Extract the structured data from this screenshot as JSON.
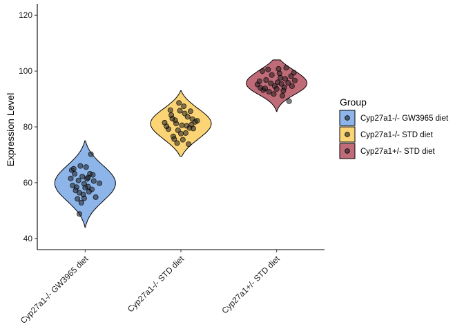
{
  "chart_data": {
    "type": "violin",
    "title": "",
    "xlabel": "",
    "ylabel": "Expression Level",
    "ylim": [
      36,
      124
    ],
    "yticks": [
      40,
      60,
      80,
      100,
      120
    ],
    "grid": false,
    "legend": {
      "title": "Group",
      "placement": "right"
    },
    "categories": [
      "Cyp27a1-/- GW3965 diet",
      "Cyp27a1-/- STD diet",
      "Cyp27a1+/- STD diet"
    ],
    "colors": [
      "#8db5ea",
      "#fbd476",
      "#c06c78"
    ],
    "series": [
      {
        "name": "Cyp27a1-/- GW3965 diet",
        "range": [
          44,
          75
        ],
        "points": [
          [
            -0.28,
            64.5
          ],
          [
            -0.22,
            63.2
          ],
          [
            -0.3,
            61.5
          ],
          [
            -0.18,
            58.4
          ],
          [
            -0.24,
            65.0
          ],
          [
            -0.1,
            66.0
          ],
          [
            -0.14,
            60.8
          ],
          [
            -0.06,
            62.2
          ],
          [
            -0.2,
            57.2
          ],
          [
            -0.12,
            56.4
          ],
          [
            -0.02,
            59.6
          ],
          [
            0.04,
            61.4
          ],
          [
            0.06,
            58.6
          ],
          [
            -0.04,
            55.8
          ],
          [
            0.1,
            63.2
          ],
          [
            0.14,
            57.6
          ],
          [
            0.18,
            60.6
          ],
          [
            0.22,
            54.8
          ],
          [
            -0.08,
            52.8
          ],
          [
            0.02,
            65.6
          ],
          [
            -0.16,
            54.2
          ],
          [
            0.08,
            56.8
          ],
          [
            -0.26,
            59.0
          ],
          [
            0.16,
            62.8
          ],
          [
            0.3,
            59.8
          ],
          [
            -0.12,
            48.8
          ],
          [
            0.0,
            58.2
          ],
          [
            0.12,
            70.2
          ],
          [
            -0.02,
            54.4
          ],
          [
            0.06,
            61.8
          ]
        ]
      },
      {
        "name": "Cyp27a1-/- STD diet",
        "range": [
          69.5,
          93
        ],
        "points": [
          [
            -0.34,
            81.5
          ],
          [
            -0.26,
            79.2
          ],
          [
            -0.2,
            84.2
          ],
          [
            -0.16,
            76.6
          ],
          [
            -0.12,
            82.4
          ],
          [
            -0.06,
            78.8
          ],
          [
            -0.02,
            85.8
          ],
          [
            0.02,
            80.6
          ],
          [
            0.06,
            87.4
          ],
          [
            0.1,
            77.8
          ],
          [
            0.14,
            83.6
          ],
          [
            0.18,
            79.6
          ],
          [
            0.24,
            82.8
          ],
          [
            0.3,
            81.8
          ],
          [
            -0.08,
            74.2
          ],
          [
            0.04,
            75.4
          ],
          [
            -0.22,
            86.0
          ],
          [
            0.2,
            85.6
          ],
          [
            -0.3,
            80.2
          ],
          [
            0.12,
            80.4
          ],
          [
            -0.1,
            81.2
          ],
          [
            0.0,
            77.6
          ],
          [
            0.16,
            73.8
          ],
          [
            -0.18,
            83.0
          ],
          [
            0.26,
            79.4
          ],
          [
            0.08,
            84.8
          ],
          [
            -0.04,
            88.6
          ],
          [
            -0.14,
            75.6
          ],
          [
            0.22,
            80.8
          ],
          [
            0.34,
            82.2
          ]
        ]
      },
      {
        "name": "Cyp27a1+/- STD diet",
        "range": [
          85.5,
          104
        ],
        "points": [
          [
            -0.4,
            95.2
          ],
          [
            -0.34,
            94.0
          ],
          [
            -0.28,
            93.2
          ],
          [
            -0.22,
            96.8
          ],
          [
            -0.16,
            92.6
          ],
          [
            -0.1,
            98.6
          ],
          [
            -0.04,
            94.6
          ],
          [
            0.02,
            96.0
          ],
          [
            0.06,
            99.2
          ],
          [
            0.1,
            95.4
          ],
          [
            0.14,
            93.0
          ],
          [
            0.18,
            97.2
          ],
          [
            0.24,
            95.8
          ],
          [
            0.3,
            98.2
          ],
          [
            0.38,
            96.6
          ],
          [
            -0.3,
            100.0
          ],
          [
            -0.18,
            100.6
          ],
          [
            0.04,
            100.8
          ],
          [
            0.2,
            101.2
          ],
          [
            -0.06,
            91.8
          ],
          [
            0.12,
            91.2
          ],
          [
            0.32,
            94.6
          ],
          [
            -0.24,
            93.8
          ],
          [
            0.26,
            89.2
          ],
          [
            -0.12,
            95.6
          ],
          [
            0.0,
            93.6
          ],
          [
            0.08,
            97.6
          ],
          [
            -0.36,
            96.4
          ],
          [
            0.16,
            94.2
          ],
          [
            0.36,
            99.4
          ]
        ]
      }
    ]
  }
}
